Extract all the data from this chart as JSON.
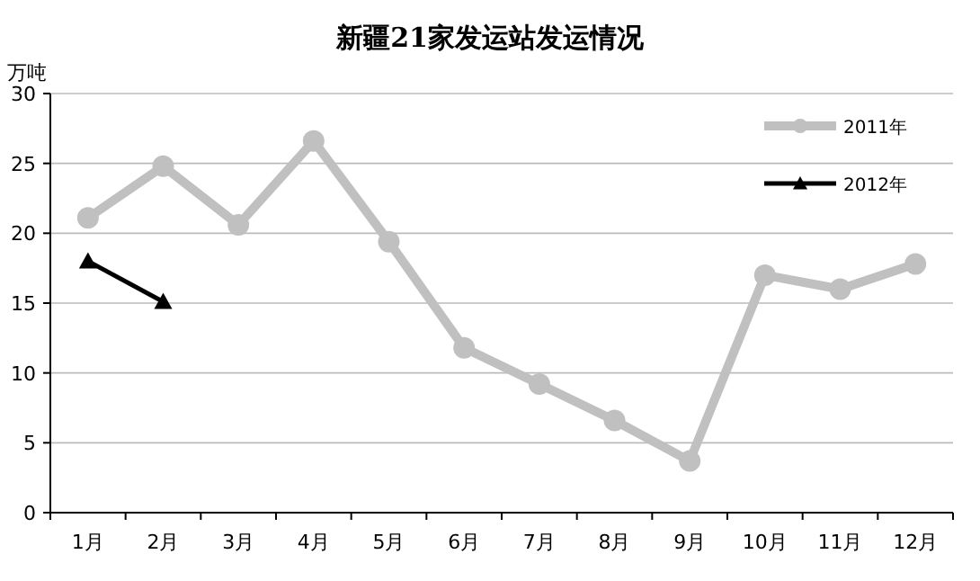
{
  "chart_data": {
    "type": "line",
    "title": "新疆21家发运站发运情况",
    "ylabel": "万吨",
    "categories": [
      "1月",
      "2月",
      "3月",
      "4月",
      "5月",
      "6月",
      "7月",
      "8月",
      "9月",
      "10月",
      "11月",
      "12月"
    ],
    "series": [
      {
        "name": "2011年",
        "color": "#c0c0c0",
        "marker": "circle",
        "values": [
          21.1,
          24.8,
          20.6,
          26.6,
          19.4,
          11.8,
          9.2,
          6.6,
          3.7,
          17.0,
          16.0,
          17.8
        ]
      },
      {
        "name": "2012年",
        "color": "#000000",
        "marker": "triangle",
        "values": [
          18.0,
          15.1,
          null,
          null,
          null,
          null,
          null,
          null,
          null,
          null,
          null,
          null
        ]
      }
    ],
    "ylim": [
      0,
      30
    ],
    "yticks": [
      0,
      5,
      10,
      15,
      20,
      25,
      30
    ],
    "grid": "y",
    "legend": "top right"
  }
}
